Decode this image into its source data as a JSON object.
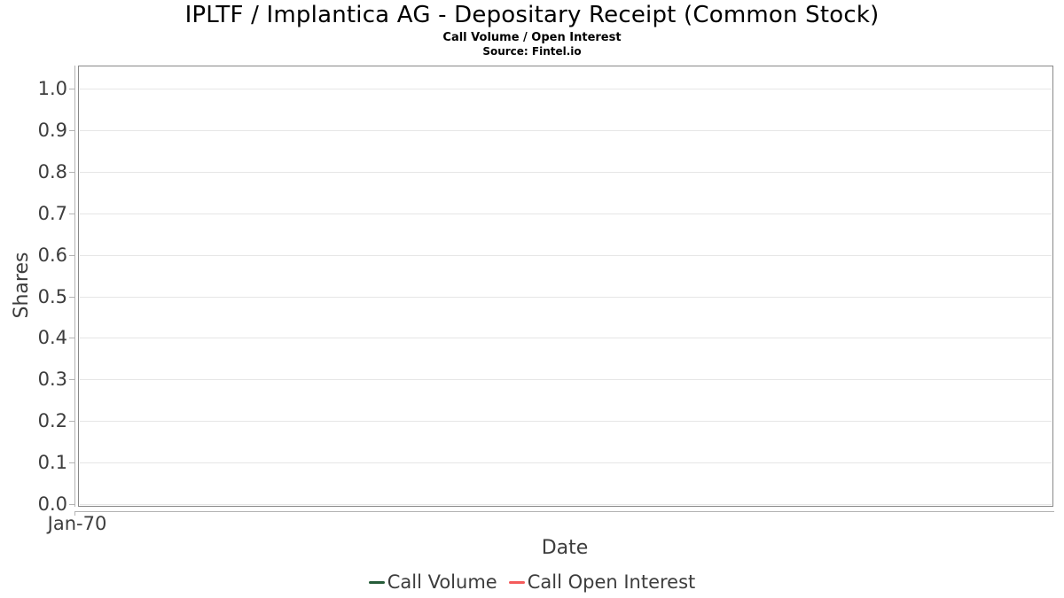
{
  "header": {
    "title": "IPLTF / Implantica AG - Depositary Receipt (Common Stock)",
    "subtitle": "Call Volume / Open Interest",
    "source": "Source: Fintel.io"
  },
  "chart_data": {
    "type": "line",
    "title": "IPLTF / Implantica AG - Depositary Receipt (Common Stock)",
    "subtitle": "Call Volume / Open Interest",
    "source": "Source: Fintel.io",
    "xlabel": "Date",
    "ylabel": "Shares",
    "x_tick_labels": [
      "Jan-70"
    ],
    "y_tick_labels": [
      "1.0",
      "0.9",
      "0.8",
      "0.7",
      "0.6",
      "0.5",
      "0.4",
      "0.3",
      "0.2",
      "0.1",
      "0.0"
    ],
    "ylim": [
      0.0,
      1.05
    ],
    "grid": "horizontal",
    "legend_position": "bottom-center",
    "series": [
      {
        "name": "Call Volume",
        "color": "#265c39",
        "x": [],
        "values": []
      },
      {
        "name": "Call Open Interest",
        "color": "#f45b5b",
        "x": [],
        "values": []
      }
    ]
  },
  "colors": {
    "frame": "#888888",
    "spine": "#b3b3b3",
    "gridline": "#e6e6e6",
    "tick_text": "#3d3d3d",
    "title_text": "#000000"
  }
}
